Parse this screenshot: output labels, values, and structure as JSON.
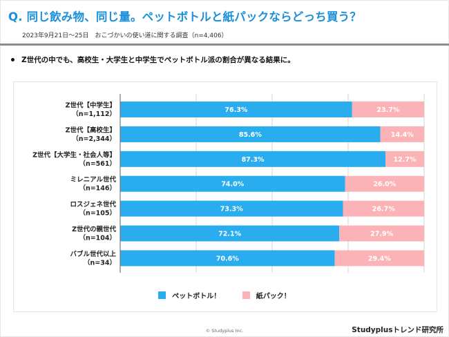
{
  "header": {
    "title": "Q. 同じ飲み物、同じ量。ペットボトルと紙パックならどっち買う？",
    "subtitle": "2023年9月21日〜25日　おこづかいの使い道に関する調査（n=4,406）"
  },
  "summary": {
    "bullet": "Z世代の中でも、高校生・大学生と中学生でペットボトル派の割合が異なる結果に。"
  },
  "colors": {
    "title": "#1b8fd9",
    "pet_bottle": "#2aadef",
    "paper_pack": "#fcb3b8"
  },
  "chart_data": {
    "type": "bar",
    "orientation": "horizontal",
    "stacked": true,
    "title": "",
    "xlabel": "",
    "ylabel": "",
    "xlim": [
      0,
      100
    ],
    "grid": true,
    "gridlines": [
      25,
      50,
      75,
      100
    ],
    "legend_position": "bottom",
    "categories": [
      {
        "line1": "Z世代【中学生】",
        "line2": "（n=1,112）"
      },
      {
        "line1": "Z世代【高校生】",
        "line2": "（n=2,344）"
      },
      {
        "line1": "Z世代【大学生・社会人等】",
        "line2": "（n=561）"
      },
      {
        "line1": "ミレニアル世代",
        "line2": "（n=146）"
      },
      {
        "line1": "ロスジェネ世代",
        "line2": "（n=105）"
      },
      {
        "line1": "Z世代の親世代",
        "line2": "（n=104）"
      },
      {
        "line1": "バブル世代以上",
        "line2": "（n=34）"
      }
    ],
    "series": [
      {
        "name": "ペットボトル！",
        "color": "#2aadef",
        "values": [
          76.3,
          85.6,
          87.3,
          74.0,
          73.3,
          72.1,
          70.6
        ],
        "labels": [
          "76.3%",
          "85.6%",
          "87.3%",
          "74.0%",
          "73.3%",
          "72.1%",
          "70.6%"
        ]
      },
      {
        "name": "紙パック！",
        "color": "#fcb3b8",
        "values": [
          23.7,
          14.4,
          12.7,
          26.0,
          26.7,
          27.9,
          29.4
        ],
        "labels": [
          "23.7%",
          "14.4%",
          "12.7%",
          "26.0%",
          "26.7%",
          "27.9%",
          "29.4%"
        ]
      }
    ]
  },
  "footer": {
    "copyright": "© Studyplus Inc.",
    "brand": "Studyplusトレンド研究所"
  }
}
